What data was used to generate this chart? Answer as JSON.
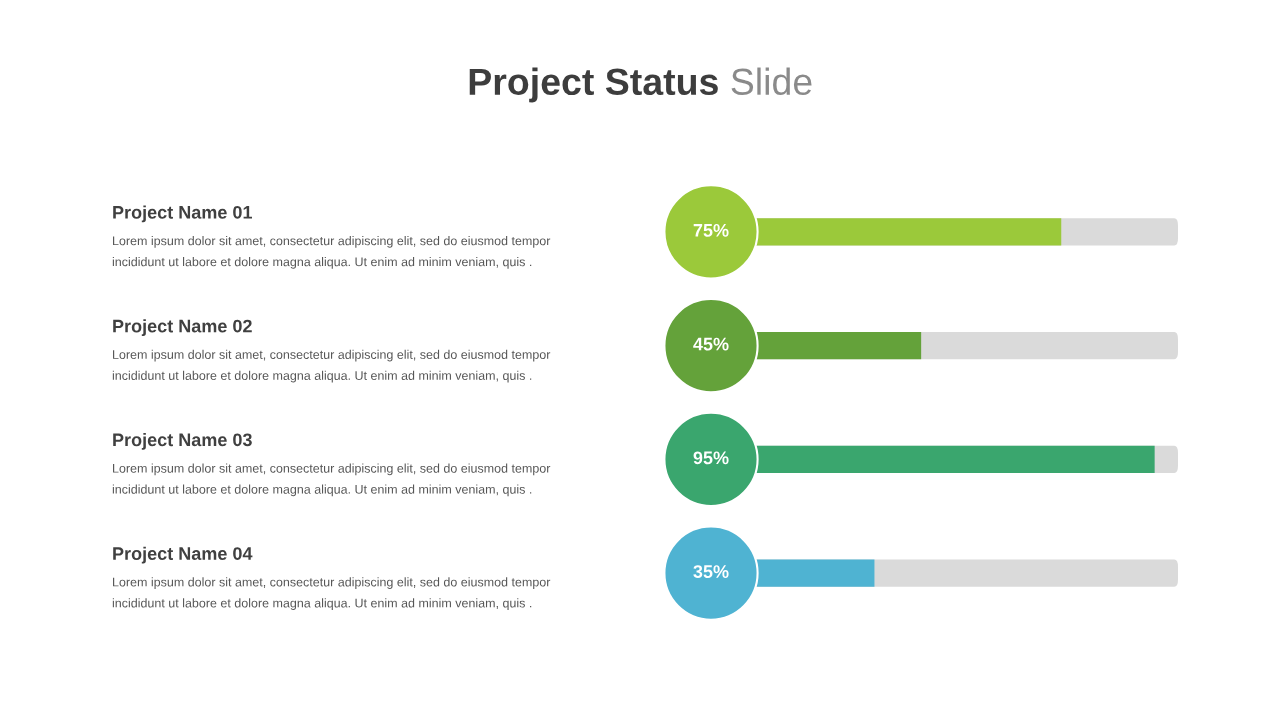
{
  "chart_data": {
    "type": "bar",
    "orientation": "horizontal",
    "title": "Project Status",
    "subtitle": "Slide",
    "categories": [
      "Project Name 01",
      "Project Name 02",
      "Project Name 03",
      "Project Name 04"
    ],
    "values": [
      75,
      45,
      95,
      35
    ],
    "colors": [
      "#9bc93a",
      "#64a23a",
      "#3aa66e",
      "#4fb3d2"
    ],
    "value_labels": [
      "75%",
      "45%",
      "95%",
      "35%"
    ],
    "xlim": [
      0,
      100
    ],
    "annotations": [
      "Lorem ipsum dolor sit amet, consectetur adipiscing elit, sed do eiusmod tempor",
      "incididunt ut labore et dolore magna aliqua. Ut enim ad minim veniam, quis .",
      "Lorem ipsum dolor sit amet, consectetur adipiscing elit, sed do eiusmod tempor",
      "incididunt ut labore et dolore magna aliqua. Ut enim ad minim veniam, quis .",
      "Lorem ipsum dolor sit amet, consectetur adipiscing elit, sed do eiusmod tempor",
      "incididunt ut labore et dolore magna aliqua. Ut enim ad minim veniam, quis .",
      "Lorem ipsum dolor sit amet, consectetur adipiscing elit, sed do eiusmod tempor",
      "incididunt ut labore et dolore magna aliqua. Ut enim ad minim veniam, quis ."
    ]
  }
}
